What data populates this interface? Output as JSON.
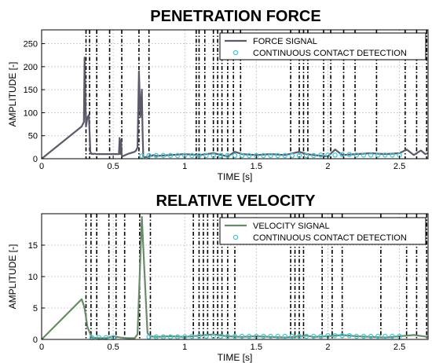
{
  "chart_data": [
    {
      "type": "line",
      "title": "PENETRATION FORCE",
      "xlabel": "TIME [s]",
      "ylabel": "AMPLITUDE [-]",
      "xlim": [
        0,
        2.7
      ],
      "ylim": [
        0,
        280
      ],
      "x_ticks": [
        0,
        0.5,
        1,
        1.5,
        2,
        2.5
      ],
      "x_tick_labels": [
        "0",
        "0.5",
        "1",
        "1.5",
        "2",
        "2.5"
      ],
      "y_ticks": [
        0,
        50,
        100,
        150,
        200,
        250
      ],
      "y_tick_labels": [
        "0",
        "50",
        "100",
        "150",
        "200",
        "250"
      ],
      "grid": true,
      "legend_position": "top-right",
      "legend": [
        "FORCE SIGNAL",
        "CONTINUOUS CONTACT DETECTION"
      ],
      "colors": {
        "signal": "#5a5a6a",
        "detection": "#3ec8d8",
        "markers": "#000000"
      },
      "series": [
        {
          "name": "FORCE SIGNAL",
          "x": [
            0,
            0.28,
            0.295,
            0.3,
            0.305,
            0.31,
            0.32,
            0.33,
            0.335,
            0.34,
            0.345,
            0.35,
            0.355,
            0.36,
            0.37,
            0.38,
            0.4,
            0.45,
            0.5,
            0.54,
            0.545,
            0.55,
            0.555,
            0.56,
            0.565,
            0.57,
            0.6,
            0.65,
            0.66,
            0.67,
            0.68,
            0.69,
            0.7,
            0.705,
            0.71,
            0.72,
            0.73,
            0.74,
            0.75,
            0.76,
            0.77,
            0.78,
            0.8,
            0.9,
            1.0,
            1.1,
            1.2,
            1.3,
            1.35,
            1.4,
            1.5,
            1.6,
            1.7,
            1.8,
            1.85,
            1.9,
            2.0,
            2.05,
            2.1,
            2.2,
            2.3,
            2.4,
            2.5,
            2.55,
            2.6,
            2.65,
            2.68,
            2.7
          ],
          "values": [
            0,
            70,
            80,
            220,
            140,
            70,
            90,
            95,
            60,
            15,
            12,
            10,
            11,
            10,
            11,
            10,
            10,
            10,
            10,
            10,
            45,
            10,
            40,
            8,
            5,
            6,
            10,
            15,
            18,
            25,
            190,
            90,
            150,
            60,
            5,
            3,
            4,
            3,
            5,
            8,
            6,
            8,
            6,
            8,
            10,
            8,
            12,
            5,
            15,
            10,
            8,
            10,
            8,
            15,
            10,
            8,
            5,
            20,
            8,
            10,
            12,
            10,
            12,
            20,
            8,
            18,
            10,
            12
          ]
        },
        {
          "name": "CONTINUOUS CONTACT DETECTION",
          "x": [
            0.7,
            0.75,
            0.8,
            0.85,
            0.9,
            0.95,
            1.0,
            1.05,
            1.1,
            1.15,
            1.2,
            1.25,
            1.3,
            1.35,
            1.4,
            1.45,
            1.5,
            1.55,
            1.6,
            1.65,
            1.7,
            1.75,
            1.8,
            1.85,
            1.9,
            1.95,
            2.0,
            2.05,
            2.1,
            2.15,
            2.2,
            2.25,
            2.3,
            2.35,
            2.4,
            2.45,
            2.5
          ],
          "values": [
            6,
            7,
            7,
            7,
            7,
            7,
            7,
            7,
            7,
            7,
            7,
            7,
            7,
            7,
            7,
            7,
            7,
            7,
            7,
            7,
            7,
            7,
            7,
            7,
            7,
            8,
            8,
            8,
            9,
            9,
            8,
            8,
            8,
            8,
            8,
            8,
            8
          ]
        }
      ],
      "vertical_markers": [
        0.31,
        0.335,
        0.385,
        0.475,
        0.56,
        0.68,
        0.75,
        1.08,
        1.1,
        1.14,
        1.2,
        1.23,
        1.26,
        1.3,
        1.34,
        1.39,
        1.74,
        1.8,
        1.83,
        1.86,
        1.97,
        2.02,
        2.11,
        2.19,
        2.34,
        2.54,
        2.62,
        2.69
      ]
    },
    {
      "type": "line",
      "title": "RELATIVE VELOCITY",
      "xlabel": "TIME [s]",
      "ylabel": "AMPLITUDE [-]",
      "xlim": [
        0,
        2.7
      ],
      "ylim": [
        0,
        20
      ],
      "x_ticks": [
        0,
        0.5,
        1,
        1.5,
        2,
        2.5
      ],
      "x_tick_labels": [
        "0",
        "0.5",
        "1",
        "1.5",
        "2",
        "2.5"
      ],
      "y_ticks": [
        0,
        5,
        10,
        15
      ],
      "y_tick_labels": [
        "0",
        "5",
        "10",
        "15"
      ],
      "grid": true,
      "legend_position": "top-right",
      "legend": [
        "VELOCITY SIGNAL",
        "CONTINUOUS CONTACT DETECTION"
      ],
      "colors": {
        "signal": "#6a8a6a",
        "detection": "#3ec8d8",
        "markers": "#000000"
      },
      "series": [
        {
          "name": "VELOCITY SIGNAL",
          "x": [
            0,
            0.28,
            0.3,
            0.32,
            0.35,
            0.4,
            0.45,
            0.5,
            0.55,
            0.6,
            0.65,
            0.67,
            0.7,
            0.72,
            0.74,
            0.76,
            0.8,
            0.9,
            1.0,
            1.1,
            1.2,
            1.3,
            1.4,
            1.5,
            1.6,
            1.7,
            1.8,
            1.85,
            1.9,
            2.0,
            2.1,
            2.2,
            2.3,
            2.4,
            2.5,
            2.6,
            2.7
          ],
          "values": [
            0,
            6.4,
            5,
            2,
            0.3,
            0.2,
            0.2,
            0.5,
            0.3,
            0.2,
            0.2,
            0.8,
            19.5,
            10,
            1,
            0.5,
            0.4,
            0.5,
            0.4,
            0.6,
            0.8,
            0.5,
            0.4,
            0.5,
            0.4,
            0.3,
            0.5,
            0.6,
            0.4,
            0.5,
            0.7,
            0.5,
            0.4,
            0.3,
            0.5,
            0.7,
            0.4
          ]
        },
        {
          "name": "CONTINUOUS CONTACT DETECTION",
          "x": [
            0.35,
            0.4,
            0.45,
            0.5,
            0.75,
            0.8,
            0.85,
            0.9,
            0.95,
            1.0,
            1.05,
            1.1,
            1.15,
            1.2,
            1.25,
            1.3,
            1.35,
            1.4,
            1.45,
            1.5,
            1.55,
            1.6,
            1.65,
            1.7,
            1.75,
            1.8,
            1.85,
            1.9,
            1.95,
            2.0,
            2.05,
            2.1,
            2.15,
            2.2,
            2.25,
            2.3,
            2.35,
            2.4,
            2.45,
            2.5
          ],
          "values": [
            0.3,
            0.3,
            0.3,
            0.3,
            0.4,
            0.4,
            0.4,
            0.4,
            0.4,
            0.4,
            0.5,
            0.5,
            0.5,
            0.5,
            0.5,
            0.5,
            0.5,
            0.5,
            0.5,
            0.5,
            0.5,
            0.5,
            0.5,
            0.5,
            0.5,
            0.5,
            0.5,
            0.5,
            0.5,
            0.6,
            0.6,
            0.6,
            0.6,
            0.5,
            0.5,
            0.5,
            0.5,
            0.5,
            0.5,
            0.5
          ]
        }
      ],
      "vertical_markers": [
        0.31,
        0.345,
        0.385,
        0.47,
        0.52,
        0.58,
        0.685,
        0.76,
        1.06,
        1.1,
        1.13,
        1.16,
        1.2,
        1.23,
        1.26,
        1.3,
        1.35,
        1.74,
        1.77,
        1.8,
        1.83,
        1.96,
        2.03,
        2.1,
        2.37,
        2.55,
        2.62,
        2.69
      ]
    }
  ]
}
